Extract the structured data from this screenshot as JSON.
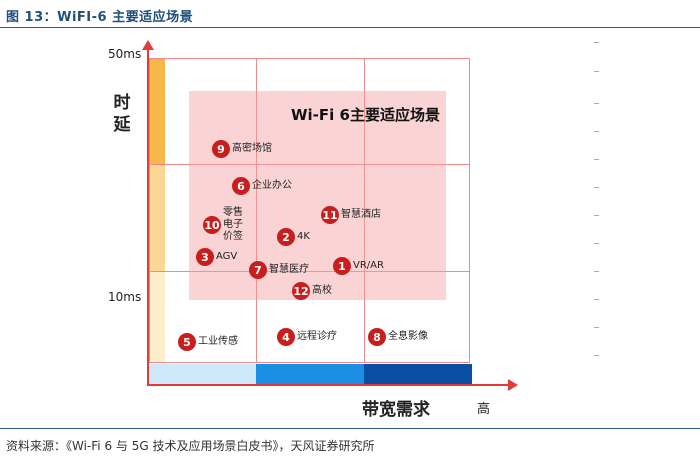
{
  "figure": {
    "title": "图 13：WiFI-6 主要适应场景",
    "source": "资料来源：《Wi-Fi 6 与 5G 技术及应用场景白皮书》，天风证券研究所"
  },
  "axes": {
    "y_label": "时延",
    "y_tick_top": "50ms",
    "y_tick_mid": "10ms",
    "x_label": "带宽需求",
    "x_high": "高"
  },
  "highlight": {
    "title": "Wi-Fi 6主要适应场景"
  },
  "scenarios": [
    {
      "num": "9",
      "label": "高密场馆"
    },
    {
      "num": "6",
      "label": "企业办公"
    },
    {
      "num": "10",
      "label": "零售电子价签"
    },
    {
      "num": "11",
      "label": "智慧酒店"
    },
    {
      "num": "2",
      "label": "4K"
    },
    {
      "num": "3",
      "label": "AGV"
    },
    {
      "num": "1",
      "label": "VR/AR"
    },
    {
      "num": "7",
      "label": "智慧医疗"
    },
    {
      "num": "12",
      "label": "高校"
    },
    {
      "num": "5",
      "label": "工业传感"
    },
    {
      "num": "4",
      "label": "远程诊疗"
    },
    {
      "num": "8",
      "label": "全息影像"
    }
  ],
  "colors": {
    "axis": "#e23b3b",
    "node": "#c81e1e",
    "highlight": "#f4a0a0",
    "latency_strong": "#f7b84a",
    "latency_mid": "#fad794",
    "latency_light": "#fdeecb",
    "bandwidth_low": "#cfe9fb",
    "bandwidth_mid": "#1a8fe3",
    "bandwidth_high": "#0b4fa3"
  }
}
